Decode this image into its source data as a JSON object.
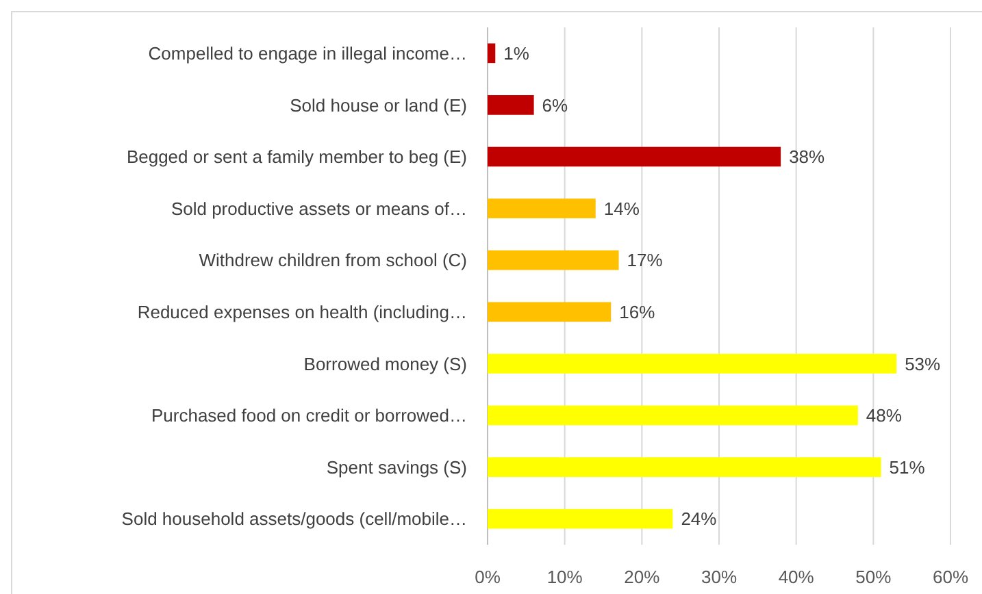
{
  "chart_data": {
    "type": "bar",
    "orientation": "horizontal",
    "categories": [
      "Compelled to engage in illegal income…",
      "Sold house or land (E)",
      "Begged or sent a family member to beg (E)",
      "Sold productive assets or means of…",
      "Withdrew children from school (C)",
      "Reduced expenses on health (including…",
      "Borrowed money (S)",
      "Purchased food on credit or borrowed…",
      "Spent savings (S)",
      "Sold household assets/goods (cell/mobile…"
    ],
    "values": [
      1,
      6,
      38,
      14,
      17,
      16,
      53,
      48,
      51,
      24
    ],
    "colors": [
      "#c00000",
      "#c00000",
      "#c00000",
      "#ffc000",
      "#ffc000",
      "#ffc000",
      "#ffff00",
      "#ffff00",
      "#ffff00",
      "#ffff00"
    ],
    "value_labels": [
      "1%",
      "6%",
      "38%",
      "14%",
      "17%",
      "16%",
      "53%",
      "48%",
      "51%",
      "24%"
    ],
    "xlim": [
      0,
      60
    ],
    "xticks": [
      {
        "value": 0,
        "label": "0%"
      },
      {
        "value": 10,
        "label": "10%"
      },
      {
        "value": 20,
        "label": "20%"
      },
      {
        "value": 30,
        "label": "30%"
      },
      {
        "value": 40,
        "label": "40%"
      },
      {
        "value": 50,
        "label": "50%"
      },
      {
        "value": 60,
        "label": "60%"
      }
    ],
    "grid": "x"
  }
}
